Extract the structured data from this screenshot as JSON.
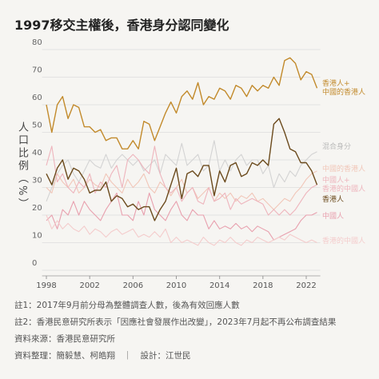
{
  "chart_data": {
    "type": "line",
    "title": "1997移交主權後，香港身分認同變化",
    "y_label": "人口比例（%）",
    "x": [
      1998,
      1998.5,
      1999,
      1999.5,
      2000,
      2000.5,
      2001,
      2001.5,
      2002,
      2002.5,
      2003,
      2003.5,
      2004,
      2004.5,
      2005,
      2005.5,
      2006,
      2006.5,
      2007,
      2007.5,
      2008,
      2008.5,
      2009,
      2009.5,
      2010,
      2010.5,
      2011,
      2011.5,
      2012,
      2012.5,
      2013,
      2013.5,
      2014,
      2014.5,
      2015,
      2015.5,
      2016,
      2016.5,
      2017,
      2017.5,
      2018,
      2018.5,
      2019,
      2019.5,
      2020,
      2020.5,
      2021,
      2021.5,
      2022,
      2022.5,
      2023
    ],
    "xlim": [
      1997.6,
      2023.3
    ],
    "xticks": [
      1998,
      2002,
      2006,
      2010,
      2014,
      2018,
      2022
    ],
    "ylim": [
      0,
      80
    ],
    "yticks": [
      0,
      10,
      20,
      30,
      40,
      50,
      60,
      70,
      80
    ],
    "grid": true,
    "series": [
      {
        "name": "香港人+\n中國的香港人",
        "color": "#c28a2b",
        "values": [
          60,
          50,
          60,
          63,
          55,
          60,
          59,
          52,
          52,
          50,
          51,
          47,
          48,
          48,
          44,
          44,
          47,
          44,
          54,
          53,
          47,
          52,
          57,
          61,
          57,
          63,
          65,
          62,
          68,
          60,
          63,
          62,
          66,
          65,
          62,
          67,
          66,
          63,
          67,
          65,
          67,
          66,
          70,
          67,
          76,
          77,
          75,
          69,
          72,
          71,
          66
        ]
      },
      {
        "name": "混合身分",
        "color": "#d3d3d3",
        "values": [
          25,
          30,
          35,
          38,
          40,
          35,
          32,
          36,
          40,
          38,
          37,
          42,
          37,
          40,
          42,
          40,
          38,
          40,
          36,
          38,
          40,
          35,
          42,
          40,
          38,
          46,
          38,
          40,
          42,
          36,
          38,
          47,
          36,
          40,
          36,
          40,
          42,
          38,
          40,
          40,
          35,
          38,
          30,
          35,
          32,
          36,
          34,
          38,
          40,
          42,
          43
        ]
      },
      {
        "name": "中國的香港人",
        "color": "#f1c6b8",
        "values": [
          30,
          28,
          35,
          32,
          30,
          33,
          28,
          30,
          33,
          31,
          30,
          35,
          32,
          30,
          28,
          33,
          30,
          32,
          35,
          30,
          28,
          32,
          30,
          27,
          30,
          33,
          28,
          30,
          26,
          28,
          30,
          25,
          28,
          26,
          28,
          25,
          27,
          26,
          28,
          25,
          26,
          24,
          22,
          24,
          26,
          25,
          28,
          30,
          33,
          35,
          36
        ]
      },
      {
        "name": "中國人+\n香港的中國人",
        "color": "#eeb4bc",
        "values": [
          38,
          45,
          32,
          35,
          30,
          28,
          32,
          30,
          35,
          28,
          32,
          30,
          35,
          38,
          30,
          40,
          42,
          40,
          37,
          35,
          45,
          35,
          30,
          28,
          30,
          25,
          28,
          30,
          25,
          24,
          30,
          25,
          26,
          28,
          22,
          26,
          24,
          25,
          26,
          25,
          24,
          20,
          22,
          20,
          22,
          20,
          22,
          25,
          28,
          30,
          31
        ]
      },
      {
        "name": "香港人",
        "color": "#6b4a1c",
        "values": [
          35,
          31,
          37,
          40,
          33,
          37,
          36,
          33,
          28,
          29,
          29,
          32,
          25,
          27,
          26,
          23,
          24,
          22,
          23,
          23,
          18,
          22,
          25,
          31,
          37,
          26,
          35,
          36,
          34,
          38,
          38,
          27,
          36,
          32,
          38,
          39,
          34,
          35,
          39,
          38,
          40,
          38,
          53,
          55,
          50,
          44,
          43,
          39,
          39,
          36,
          31
        ]
      },
      {
        "name": "中國人",
        "color": "#e8a0ae",
        "values": [
          18,
          20,
          15,
          22,
          20,
          25,
          20,
          25,
          22,
          20,
          18,
          22,
          25,
          28,
          20,
          20,
          18,
          25,
          20,
          28,
          22,
          20,
          18,
          22,
          25,
          20,
          18,
          22,
          20,
          20,
          15,
          18,
          15,
          16,
          15,
          17,
          15,
          16,
          14,
          16,
          15,
          14,
          11,
          12,
          13,
          14,
          15,
          18,
          20,
          20,
          21
        ]
      },
      {
        "name": "香港的中國人",
        "color": "#f4cccc",
        "values": [
          20,
          15,
          18,
          15,
          17,
          15,
          14,
          16,
          13,
          15,
          14,
          12,
          14,
          15,
          13,
          14,
          15,
          12,
          13,
          12,
          14,
          12,
          15,
          10,
          12,
          10,
          11,
          10,
          9,
          12,
          10,
          9,
          11,
          10,
          12,
          10,
          9,
          11,
          10,
          12,
          11,
          10,
          11,
          12,
          11,
          13,
          12,
          11,
          10,
          11,
          10
        ]
      }
    ],
    "notes": [
      "註1：2017年9月前分母為整體調查人數，後為有效回應人數",
      "註2：香港民意研究所表示「因應社會發展作出改變」，2023年7月起不再公布調查結果",
      "資料來源：香港民意研究所",
      "資料整理：簡毅慧、柯皓翔　｜　設計：江世民"
    ]
  }
}
